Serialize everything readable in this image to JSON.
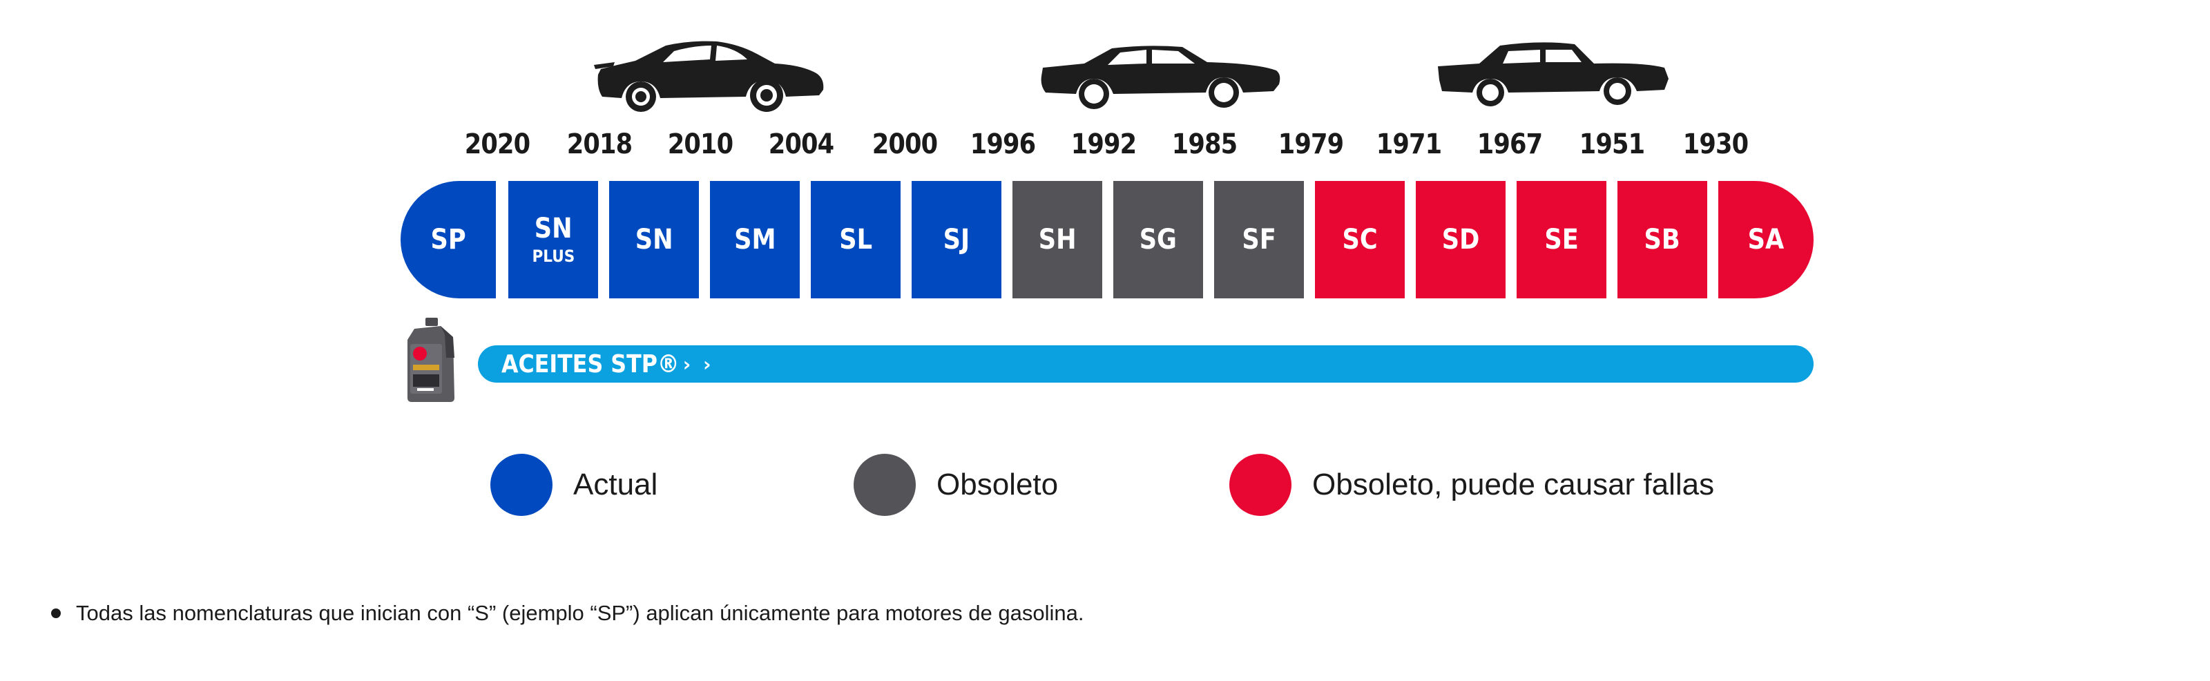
{
  "years": [
    "2020",
    "2018",
    "2010",
    "2004",
    "2000",
    "1996",
    "1992",
    "1985",
    "1979",
    "1971",
    "1967",
    "1951",
    "1930"
  ],
  "categories": [
    {
      "code": "SP",
      "sub": "",
      "status": "current"
    },
    {
      "code": "SN",
      "sub": "PLUS",
      "status": "current"
    },
    {
      "code": "SN",
      "sub": "",
      "status": "current"
    },
    {
      "code": "SM",
      "sub": "",
      "status": "current"
    },
    {
      "code": "SL",
      "sub": "",
      "status": "current"
    },
    {
      "code": "SJ",
      "sub": "",
      "status": "current"
    },
    {
      "code": "SH",
      "sub": "",
      "status": "obsolete"
    },
    {
      "code": "SG",
      "sub": "",
      "status": "obsolete"
    },
    {
      "code": "SF",
      "sub": "",
      "status": "obsolete"
    },
    {
      "code": "SC",
      "sub": "",
      "status": "harmful"
    },
    {
      "code": "SD",
      "sub": "",
      "status": "harmful"
    },
    {
      "code": "SE",
      "sub": "",
      "status": "harmful"
    },
    {
      "code": "SB",
      "sub": "",
      "status": "harmful"
    },
    {
      "code": "SA",
      "sub": "",
      "status": "harmful"
    }
  ],
  "product": {
    "label": "ACEITES STP®",
    "arrows": "› ›",
    "bottle_icon": "oil-bottle-icon",
    "color": "#0ba1e1"
  },
  "legend": [
    {
      "label": "Actual",
      "color": "#0049be"
    },
    {
      "label": "Obsoleto",
      "color": "#535358"
    },
    {
      "label": "Obsoleto, puede causar fallas",
      "color": "#e80633"
    }
  ],
  "colors": {
    "current": "#0049be",
    "obsolete": "#535358",
    "harmful": "#e80633",
    "car": "#1d1d1d"
  },
  "icons": [
    "modern-car-icon",
    "retro-car-icon",
    "classic-car-icon"
  ],
  "footnote": "Todas las nomenclaturas que inician con “S” (ejemplo “SP”) aplican únicamente para motores de gasolina."
}
